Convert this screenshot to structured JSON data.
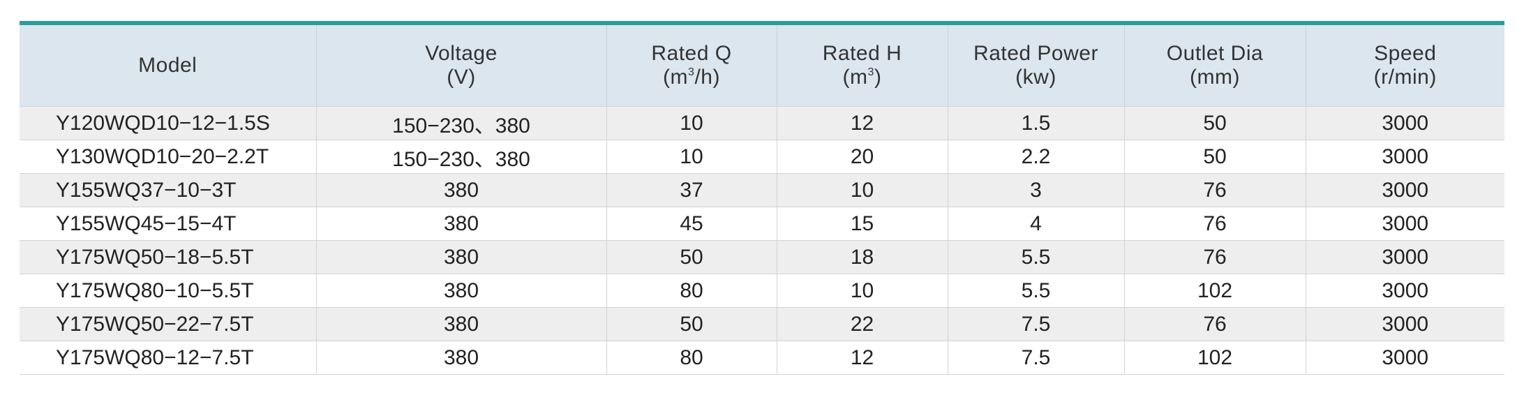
{
  "colors": {
    "accent_line": "#2a9d9a",
    "header_bg": "#dbe6ee",
    "row_alt_bg": "#eeeeee"
  },
  "table": {
    "headers": [
      {
        "label": "Model",
        "unit": ""
      },
      {
        "label": "Voltage",
        "unit": "(V)"
      },
      {
        "label": "Rated Q",
        "unit_pre": "(m",
        "unit_sup": "3",
        "unit_post": "/h)"
      },
      {
        "label": "Rated H",
        "unit_pre": "(m",
        "unit_sup": "3",
        "unit_post": ")"
      },
      {
        "label": "Rated Power",
        "unit": "(kw)"
      },
      {
        "label": "Outlet Dia",
        "unit": "(mm)"
      },
      {
        "label": "Speed",
        "unit": "(r/min)"
      }
    ],
    "rows": [
      [
        "Y120WQD10−12−1.5S",
        "150−230、380",
        "10",
        "12",
        "1.5",
        "50",
        "3000"
      ],
      [
        "Y130WQD10−20−2.2T",
        "150−230、380",
        "10",
        "20",
        "2.2",
        "50",
        "3000"
      ],
      [
        "Y155WQ37−10−3T",
        "380",
        "37",
        "10",
        "3",
        "76",
        "3000"
      ],
      [
        "Y155WQ45−15−4T",
        "380",
        "45",
        "15",
        "4",
        "76",
        "3000"
      ],
      [
        "Y175WQ50−18−5.5T",
        "380",
        "50",
        "18",
        "5.5",
        "76",
        "3000"
      ],
      [
        "Y175WQ80−10−5.5T",
        "380",
        "80",
        "10",
        "5.5",
        "102",
        "3000"
      ],
      [
        "Y175WQ50−22−7.5T",
        "380",
        "50",
        "22",
        "7.5",
        "76",
        "3000"
      ],
      [
        "Y175WQ80−12−7.5T",
        "380",
        "80",
        "12",
        "7.5",
        "102",
        "3000"
      ]
    ]
  }
}
